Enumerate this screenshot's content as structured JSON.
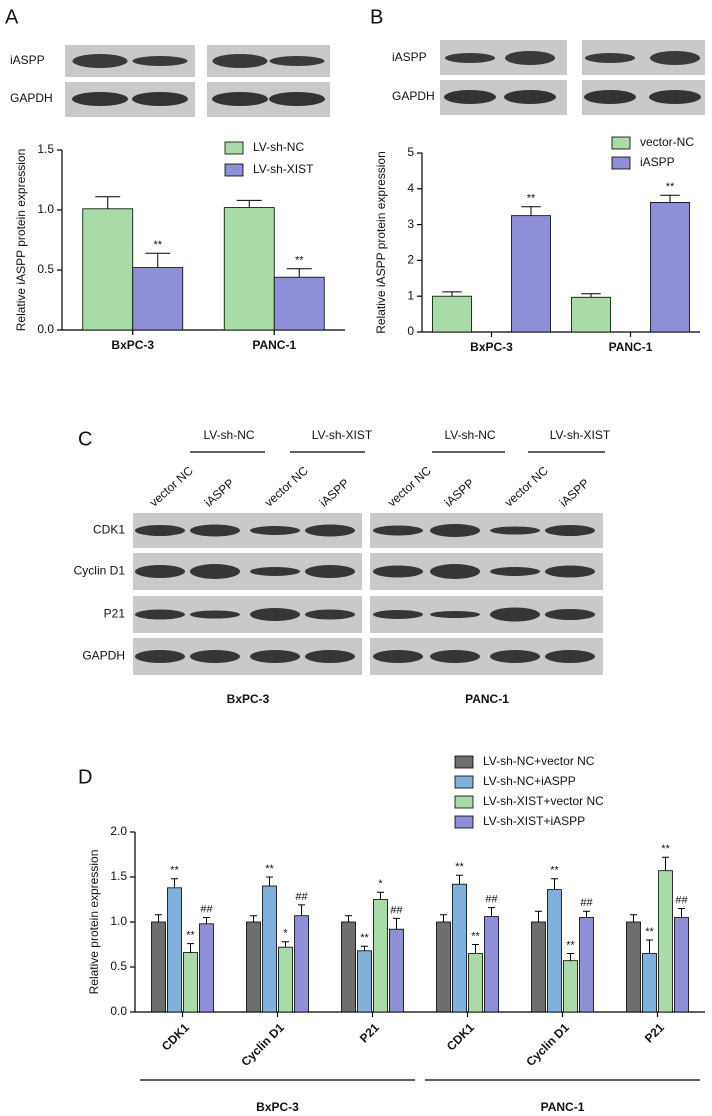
{
  "panel_labels": [
    "A",
    "B",
    "C",
    "D"
  ],
  "blot_a": {
    "rows": [
      "iASPP",
      "GAPDH"
    ]
  },
  "blot_b": {
    "rows": [
      "iASPP",
      "GAPDH"
    ]
  },
  "blot_c": {
    "groups": [
      "LV-sh-NC",
      "LV-sh-XIST",
      "LV-sh-NC",
      "LV-sh-XIST"
    ],
    "lanes": [
      "vector NC",
      "iASPP",
      "vector NC",
      "iASPP",
      "vector NC",
      "iASPP",
      "vector NC",
      "iASPP"
    ],
    "rows": [
      "CDK1",
      "Cyclin D1",
      "P21",
      "GAPDH"
    ],
    "cell_lines": [
      "BxPC-3",
      "PANC-1"
    ]
  },
  "chart_data": [
    {
      "type": "bar",
      "y_label": "Relative  iASPP protein expression",
      "categories": [
        "BxPC-3",
        "PANC-1"
      ],
      "series": [
        {
          "name": "LV-sh-NC",
          "color": "#a8dba8",
          "values": [
            1.01,
            1.02
          ],
          "errors": [
            0.1,
            0.06
          ]
        },
        {
          "name": "LV-sh-XIST",
          "color": "#8e8fd6",
          "values": [
            0.52,
            0.44
          ],
          "errors": [
            0.12,
            0.07
          ],
          "significance": [
            "**",
            "**"
          ]
        }
      ],
      "ylim": [
        0,
        1.5
      ],
      "yticks": [
        {
          "value": 0,
          "label": "0.0"
        },
        0.5,
        {
          "value": 1,
          "label": "1.0"
        },
        1.5
      ]
    },
    {
      "type": "bar",
      "y_label": "Relative  iASPP protein expression",
      "categories": [
        "BxPC-3",
        "PANC-1"
      ],
      "series": [
        {
          "name": "vector-NC",
          "color": "#a8dba8",
          "values": [
            1.0,
            0.97
          ],
          "errors": [
            0.12,
            0.1
          ]
        },
        {
          "name": "iASPP",
          "color": "#8e8fd6",
          "values": [
            3.25,
            3.62
          ],
          "errors": [
            0.25,
            0.2
          ],
          "significance": [
            "**",
            "**"
          ]
        }
      ],
      "ylim": [
        0,
        5
      ],
      "yticks": [
        0,
        1,
        2,
        3,
        4,
        5
      ]
    },
    {
      "type": "bar",
      "y_label": "Relative protein expression",
      "categories": [
        "CDK1",
        "Cyclin D1",
        "P21",
        "CDK1",
        "Cyclin D1",
        "P21"
      ],
      "group_labels": [
        {
          "text": "BxPC-3",
          "from": 0,
          "to": 2
        },
        {
          "text": "PANC-1",
          "from": 3,
          "to": 5
        }
      ],
      "series": [
        {
          "name": "LV-sh-NC+vector NC",
          "color": "#6d6d6d",
          "values": [
            1.0,
            1.0,
            1.0,
            1.0,
            1.0,
            1.0
          ],
          "errors": [
            0.08,
            0.07,
            0.07,
            0.08,
            0.12,
            0.08
          ]
        },
        {
          "name": "LV-sh-NC+iASPP",
          "color": "#7fb1dc",
          "values": [
            1.38,
            1.4,
            0.68,
            1.42,
            1.36,
            0.65
          ],
          "errors": [
            0.1,
            0.1,
            0.05,
            0.1,
            0.12,
            0.15
          ],
          "significance": [
            "**",
            "**",
            "**",
            "**",
            "**",
            "**"
          ]
        },
        {
          "name": "LV-sh-XIST+vector NC",
          "color": "#a8dba8",
          "values": [
            0.66,
            0.72,
            1.25,
            0.65,
            0.57,
            1.57
          ],
          "errors": [
            0.1,
            0.06,
            0.08,
            0.1,
            0.08,
            0.15
          ],
          "significance": [
            "**",
            "*",
            "*",
            "**",
            "**",
            "**"
          ]
        },
        {
          "name": "LV-sh-XIST+iASPP",
          "color": "#8e8fd6",
          "values": [
            0.98,
            1.07,
            0.92,
            1.06,
            1.05,
            1.05
          ],
          "errors": [
            0.07,
            0.12,
            0.12,
            0.1,
            0.07,
            0.1
          ],
          "significance": [
            "##",
            "##",
            "##",
            "##",
            "##",
            "##"
          ]
        }
      ],
      "ylim": [
        0,
        2
      ],
      "yticks": [
        {
          "value": 0,
          "label": "0.0"
        },
        0.5,
        {
          "value": 1,
          "label": "1.0"
        },
        1.5,
        {
          "value": 2,
          "label": "2.0"
        }
      ]
    }
  ]
}
